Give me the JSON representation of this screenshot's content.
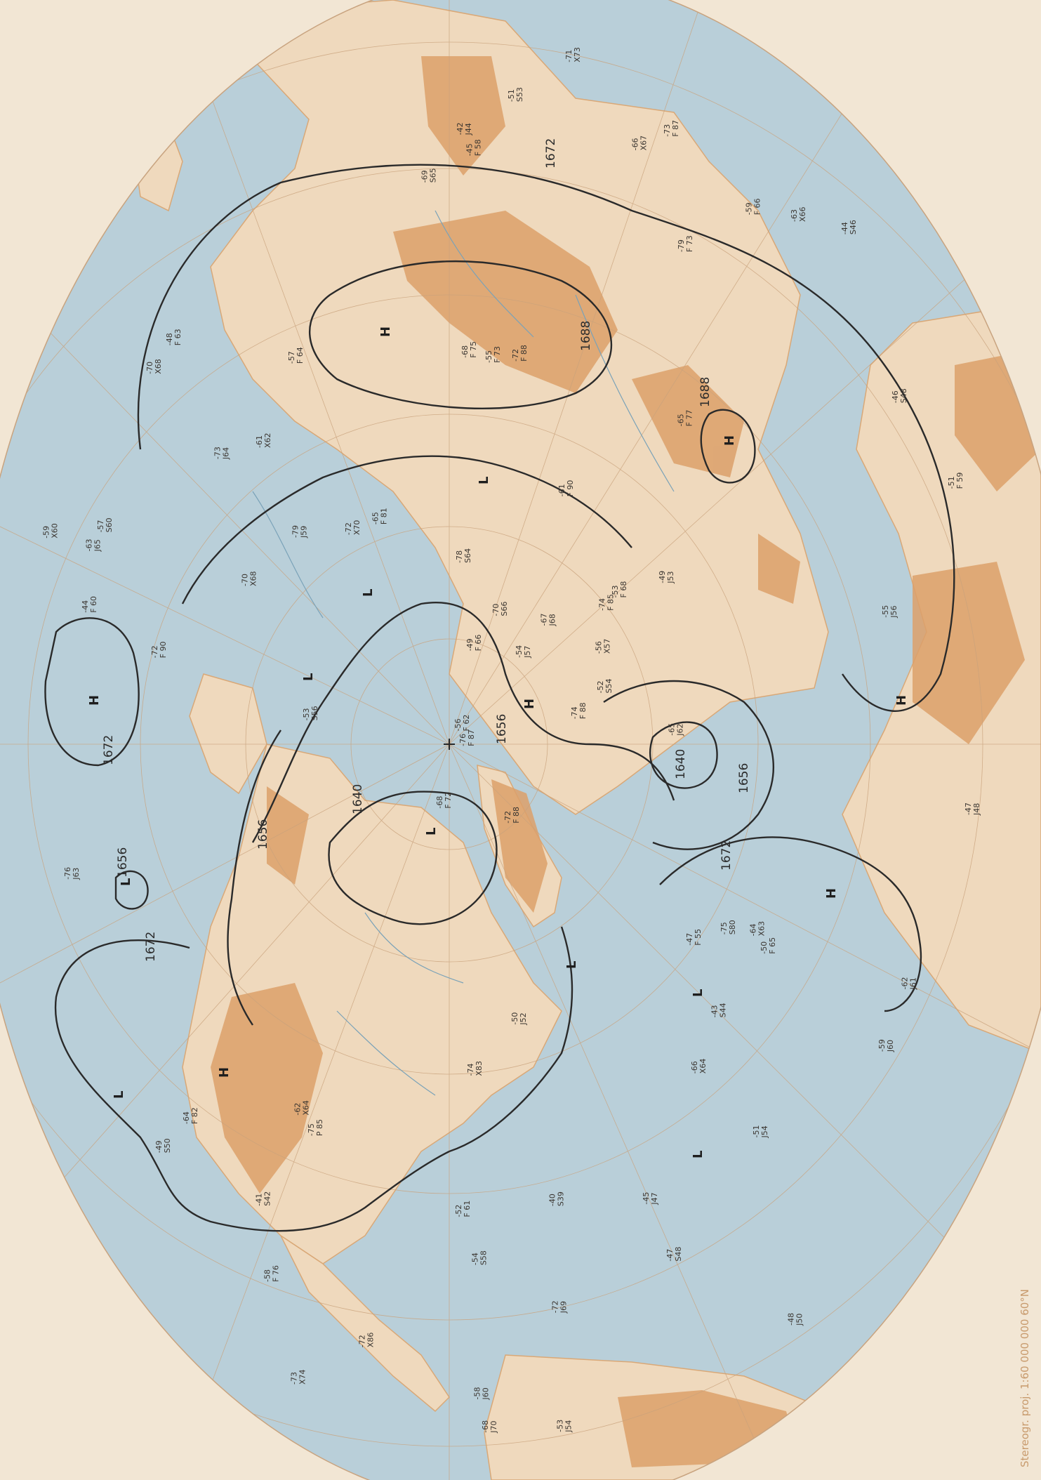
{
  "map": {
    "projection_note": "Stereogr. proj. 1:60 000 000 60°N",
    "contours": [
      {
        "label": "1688"
      },
      {
        "label": "1688"
      },
      {
        "label": "1672"
      },
      {
        "label": "1672"
      },
      {
        "label": "1672"
      },
      {
        "label": "1672"
      },
      {
        "label": "1656"
      },
      {
        "label": "1656"
      },
      {
        "label": "1656"
      },
      {
        "label": "1656"
      },
      {
        "label": "1640"
      },
      {
        "label": "1640"
      }
    ],
    "pressure_centers": [
      "H",
      "H",
      "H",
      "H",
      "H",
      "H",
      "H",
      "L",
      "L",
      "L",
      "L",
      "L",
      "L",
      "L",
      "L",
      "L"
    ],
    "observations": [
      "-72 F 88",
      "-70 X68",
      "-76 F 87",
      "-74 F 85",
      "-75 P 85",
      "-73 F 87",
      "-72 F 88",
      "-79 F 73",
      "-74 F 88",
      "-72 F 90",
      "-68 F 72",
      "-65 F 77",
      "-68 F 75",
      "-61 F 90",
      "-64 F 82",
      "-65 F 81",
      "-58 F 76",
      "-55 F 73",
      "-53 F 68",
      "-50 F 65",
      "-48 F 63",
      "-45 F 58",
      "-44 F 60",
      "-47 F 55",
      "-51 F 59",
      "-56 F 62",
      "-52 F 61",
      "-49 F 66",
      "-57 F 64",
      "-59 F 66",
      "-62 X64",
      "-64 X63",
      "-71 X73",
      "-72 X70",
      "-70 X68",
      "-66 X64",
      "-73 X74",
      "-59 X60",
      "-56 X57",
      "-54 S58",
      "-52 S54",
      "-49 S50",
      "-46 S48",
      "-43 S44",
      "-47 S48",
      "-41 S42",
      "-40 S39",
      "-44 S46",
      "-51 S53",
      "-53 S56",
      "-57 S60",
      "-61 X62",
      "-63 X66",
      "-66 X67",
      "-69 S65",
      "-70 S66",
      "-74 X83",
      "-72 X86",
      "-75 S80",
      "-79 J59",
      "-73 J64",
      "-76 J63",
      "-78 S64",
      "-72 J69",
      "-67 J68",
      "-65 J62",
      "-62 J61",
      "-58 J60",
      "-55 J56",
      "-50 J52",
      "-48 J50",
      "-53 J54",
      "-45 J47",
      "-42 J44",
      "-47 J48",
      "-49 J53",
      "-51 J54",
      "-54 J57",
      "-59 J60",
      "-63 J65",
      "-68 J70"
    ]
  }
}
